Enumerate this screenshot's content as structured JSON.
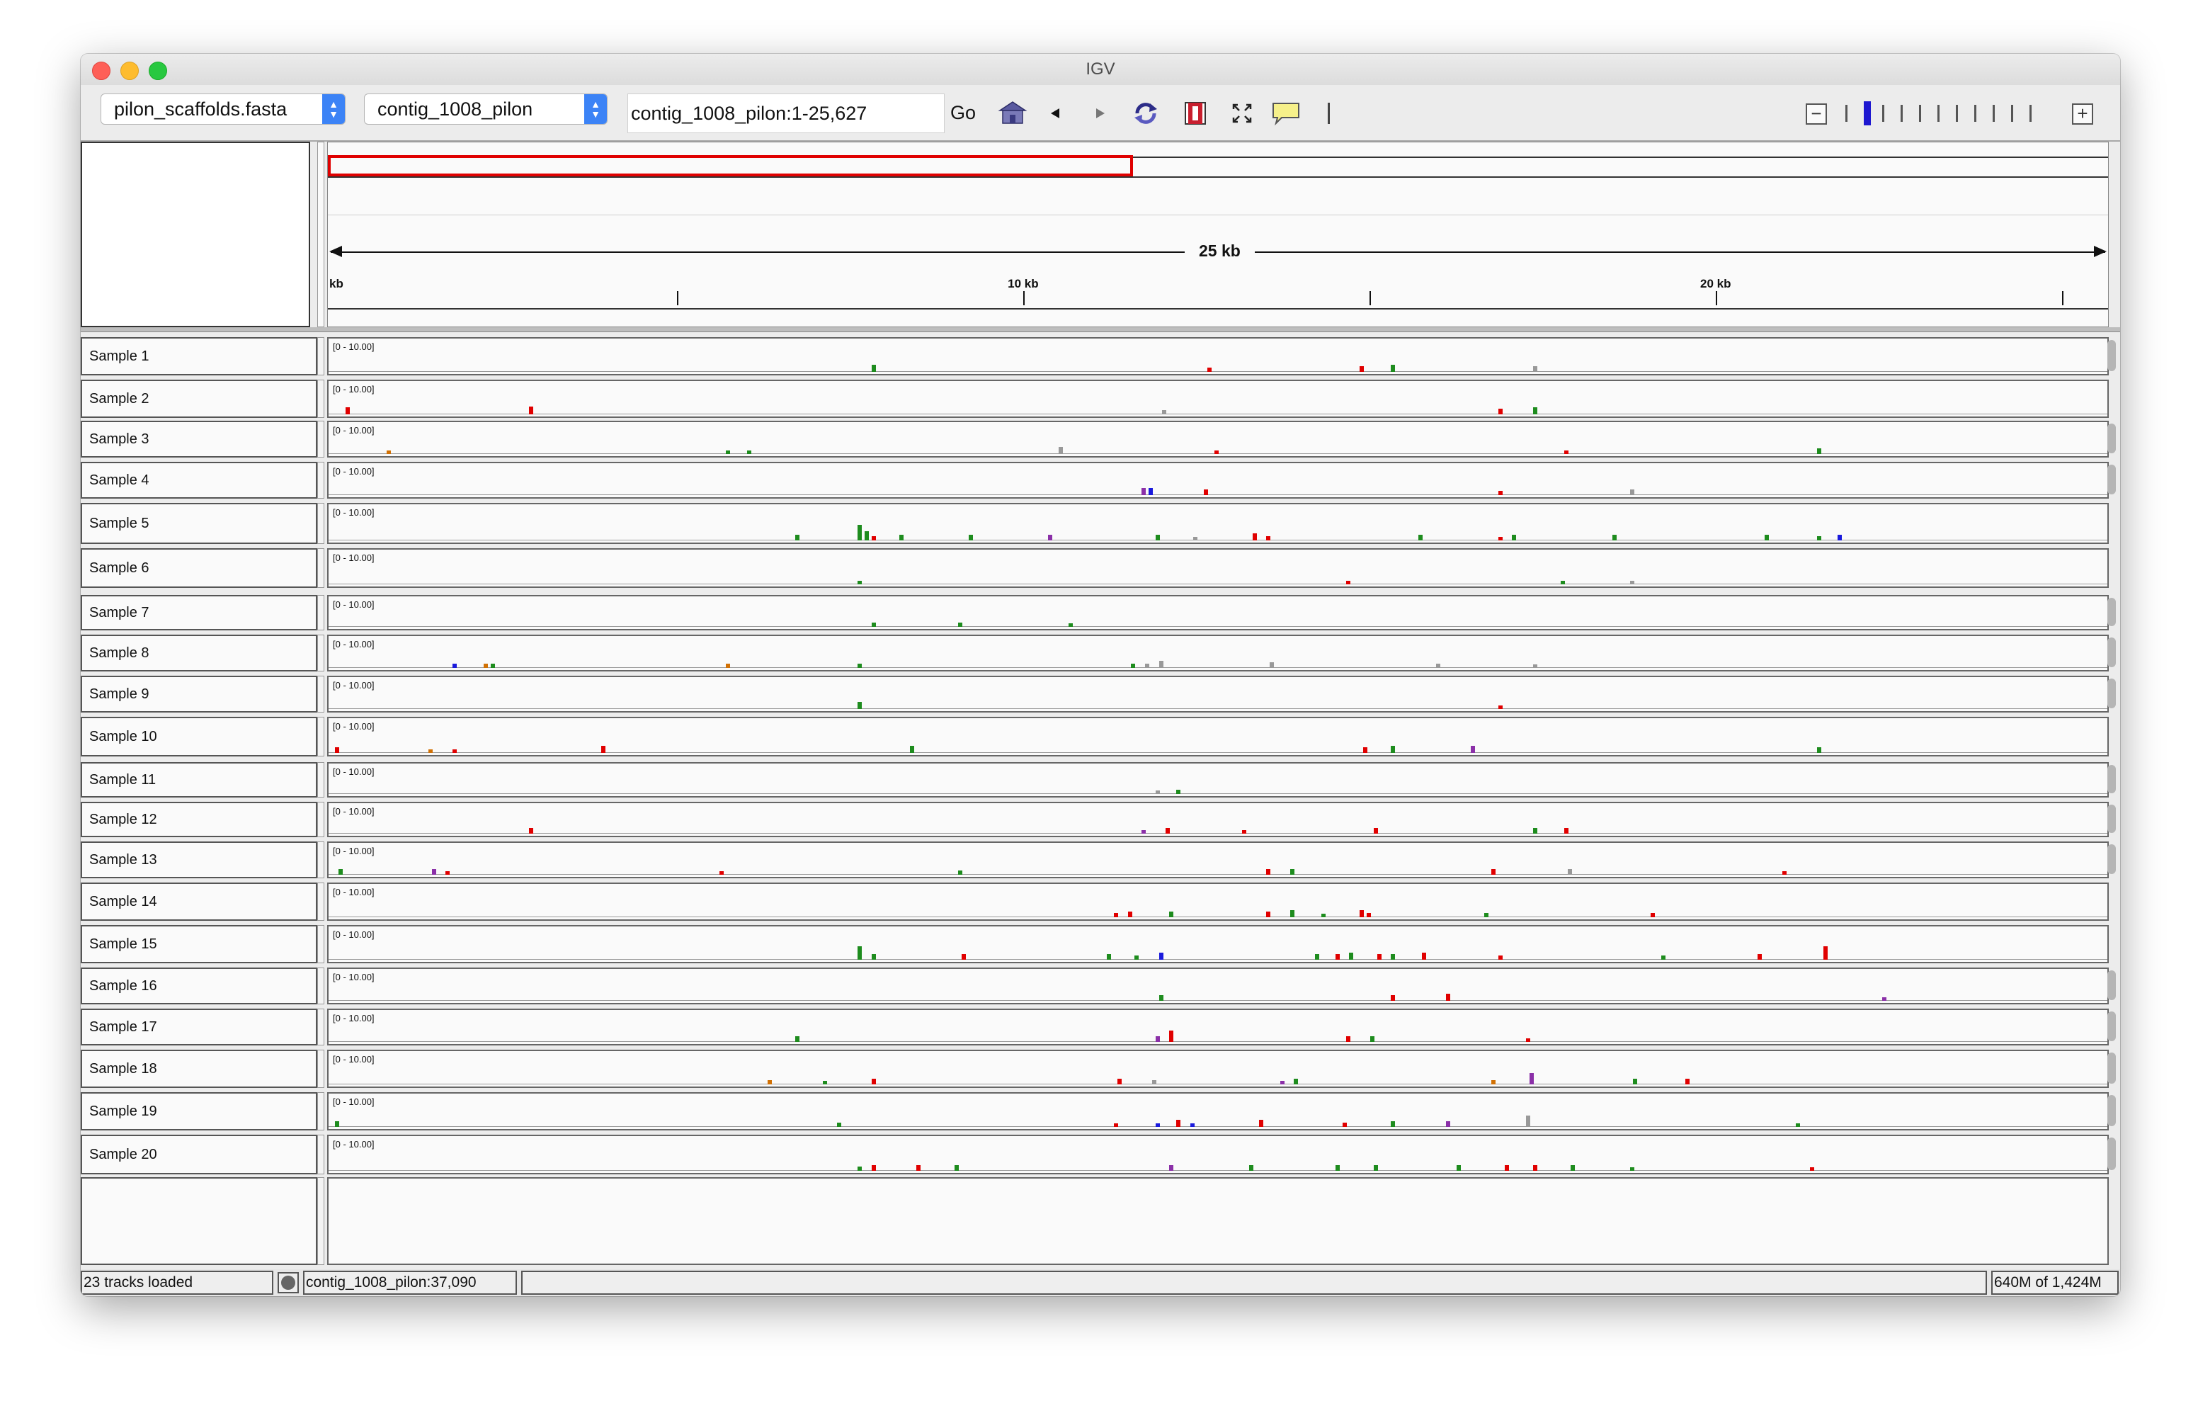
{
  "window": {
    "title": "IGV"
  },
  "toolbar": {
    "genome": "pilon_scaffolds.fasta",
    "chromosome": "contig_1008_pilon",
    "locus": "contig_1008_pilon:1-25,627",
    "go_label": "Go",
    "icons": [
      "home-icon",
      "back-icon",
      "forward-icon",
      "refresh-icon",
      "roi-icon",
      "fit-icon",
      "popup-info-icon",
      "separator"
    ],
    "zoom_ticks": 11,
    "zoom_level_index": 1
  },
  "ruler": {
    "span_label": "25 kb",
    "tick_labels": [
      {
        "text": "kb",
        "kb": 0
      },
      {
        "text": "10 kb",
        "kb": 10
      },
      {
        "text": "20 kb",
        "kb": 20
      }
    ],
    "unlabeled_ticks_kb": [
      5,
      15,
      25
    ],
    "region_end_kb": 25.627,
    "view_fraction": 0.452
  },
  "colors": {
    "A": "#1e8c1e",
    "C": "#1a1adc",
    "G": "#d17105",
    "T": "#e00000",
    "mix": "#999999",
    "purple": "#8b30a8",
    "roi": "#e00000"
  },
  "tracks": [
    {
      "name": "Sample 1",
      "range": "[0 - 10.00]",
      "scrollbar": true,
      "marks": [
        [
          7.8,
          "A",
          6
        ],
        [
          12.65,
          "T",
          4
        ],
        [
          14.85,
          "T",
          5
        ],
        [
          15.3,
          "A",
          6
        ],
        [
          17.35,
          "mix",
          5
        ]
      ]
    },
    {
      "name": "Sample 2",
      "range": "[0 - 10.00]",
      "scrollbar": false,
      "marks": [
        [
          0.2,
          "T",
          6
        ],
        [
          2.85,
          "T",
          7
        ],
        [
          12.0,
          "mix",
          4
        ],
        [
          16.85,
          "T",
          5
        ],
        [
          17.35,
          "A",
          6
        ]
      ]
    },
    {
      "name": "Sample 3",
      "range": "[0 - 10.00]",
      "scrollbar": true,
      "marks": [
        [
          0.8,
          "G",
          3
        ],
        [
          5.7,
          "A",
          3
        ],
        [
          6.0,
          "A",
          3
        ],
        [
          10.5,
          "mix",
          6
        ],
        [
          12.75,
          "T",
          3
        ],
        [
          17.8,
          "T",
          3
        ],
        [
          21.45,
          "A",
          5
        ]
      ]
    },
    {
      "name": "Sample 4",
      "range": "[0 - 10.00]",
      "scrollbar": true,
      "marks": [
        [
          11.7,
          "purple",
          6
        ],
        [
          11.8,
          "C",
          6
        ],
        [
          12.6,
          "T",
          5
        ],
        [
          16.85,
          "T",
          4
        ],
        [
          18.75,
          "mix",
          5
        ]
      ]
    },
    {
      "name": "Sample 5",
      "range": "[0 - 10.00]",
      "scrollbar": false,
      "marks": [
        [
          6.7,
          "A",
          5
        ],
        [
          7.6,
          "A",
          14
        ],
        [
          7.7,
          "A",
          8
        ],
        [
          7.8,
          "T",
          4
        ],
        [
          8.2,
          "A",
          5
        ],
        [
          9.2,
          "A",
          5
        ],
        [
          10.35,
          "purple",
          5
        ],
        [
          11.9,
          "A",
          5
        ],
        [
          12.45,
          "mix",
          3
        ],
        [
          13.3,
          "T",
          6
        ],
        [
          13.5,
          "T",
          4
        ],
        [
          15.7,
          "A",
          5
        ],
        [
          16.85,
          "T",
          3
        ],
        [
          17.05,
          "A",
          5
        ],
        [
          18.5,
          "A",
          5
        ],
        [
          20.7,
          "A",
          5
        ],
        [
          21.45,
          "A",
          4
        ],
        [
          21.75,
          "C",
          5
        ]
      ]
    },
    {
      "name": "Sample 6",
      "range": "[0 - 10.00]",
      "scrollbar": false,
      "marks": [
        [
          7.6,
          "A",
          3
        ],
        [
          14.65,
          "T",
          3
        ],
        [
          17.75,
          "A",
          3
        ],
        [
          18.75,
          "mix",
          3
        ]
      ]
    },
    {
      "name": "Sample 7",
      "range": "[0 - 10.00]",
      "scrollbar": true,
      "marks": [
        [
          7.8,
          "A",
          4
        ],
        [
          9.05,
          "A",
          4
        ],
        [
          10.65,
          "A",
          3
        ]
      ]
    },
    {
      "name": "Sample 8",
      "range": "[0 - 10.00]",
      "scrollbar": true,
      "marks": [
        [
          1.75,
          "C",
          4
        ],
        [
          2.2,
          "G",
          4
        ],
        [
          2.3,
          "A",
          4
        ],
        [
          5.7,
          "G",
          4
        ],
        [
          7.6,
          "A",
          4
        ],
        [
          11.55,
          "A",
          4
        ],
        [
          11.75,
          "mix",
          4
        ],
        [
          11.95,
          "mix",
          6
        ],
        [
          13.55,
          "mix",
          5
        ],
        [
          15.95,
          "mix",
          4
        ],
        [
          17.35,
          "mix",
          3
        ]
      ]
    },
    {
      "name": "Sample 9",
      "range": "[0 - 10.00]",
      "scrollbar": true,
      "marks": [
        [
          7.6,
          "A",
          6
        ],
        [
          16.85,
          "T",
          3
        ]
      ]
    },
    {
      "name": "Sample 10",
      "range": "[0 - 10.00]",
      "scrollbar": false,
      "marks": [
        [
          0.05,
          "T",
          5
        ],
        [
          1.4,
          "G",
          3
        ],
        [
          1.75,
          "T",
          3
        ],
        [
          3.9,
          "T",
          6
        ],
        [
          8.35,
          "A",
          6
        ],
        [
          14.9,
          "T",
          5
        ],
        [
          15.3,
          "A",
          6
        ],
        [
          16.45,
          "purple",
          6
        ],
        [
          21.45,
          "A",
          5
        ]
      ]
    },
    {
      "name": "Sample 11",
      "range": "[0 - 10.00]",
      "scrollbar": true,
      "marks": [
        [
          11.9,
          "mix",
          3
        ],
        [
          12.2,
          "A",
          4
        ]
      ]
    },
    {
      "name": "Sample 12",
      "range": "[0 - 10.00]",
      "scrollbar": true,
      "marks": [
        [
          2.85,
          "T",
          5
        ],
        [
          11.7,
          "purple",
          3
        ],
        [
          12.05,
          "T",
          5
        ],
        [
          13.15,
          "T",
          3
        ],
        [
          15.05,
          "T",
          5
        ],
        [
          17.35,
          "A",
          5
        ],
        [
          17.8,
          "T",
          5
        ]
      ]
    },
    {
      "name": "Sample 13",
      "range": "[0 - 10.00]",
      "scrollbar": true,
      "marks": [
        [
          0.1,
          "A",
          5
        ],
        [
          1.45,
          "purple",
          5
        ],
        [
          1.65,
          "T",
          3
        ],
        [
          5.6,
          "T",
          3
        ],
        [
          9.05,
          "A",
          4
        ],
        [
          13.5,
          "T",
          5
        ],
        [
          13.85,
          "A",
          5
        ],
        [
          16.75,
          "T",
          5
        ],
        [
          17.85,
          "mix",
          5
        ],
        [
          20.95,
          "T",
          3
        ]
      ]
    },
    {
      "name": "Sample 14",
      "range": "[0 - 10.00]",
      "scrollbar": false,
      "marks": [
        [
          11.3,
          "T",
          4
        ],
        [
          11.5,
          "T",
          5
        ],
        [
          12.1,
          "A",
          5
        ],
        [
          13.5,
          "T",
          5
        ],
        [
          13.85,
          "A",
          6
        ],
        [
          14.3,
          "A",
          3
        ],
        [
          14.85,
          "T",
          6
        ],
        [
          14.95,
          "T",
          4
        ],
        [
          16.65,
          "A",
          4
        ],
        [
          19.05,
          "T",
          4
        ]
      ]
    },
    {
      "name": "Sample 15",
      "range": "[0 - 10.00]",
      "scrollbar": false,
      "marks": [
        [
          7.6,
          "A",
          12
        ],
        [
          7.8,
          "A",
          5
        ],
        [
          9.1,
          "T",
          5
        ],
        [
          11.2,
          "A",
          5
        ],
        [
          11.6,
          "A",
          4
        ],
        [
          11.95,
          "C",
          6
        ],
        [
          14.2,
          "A",
          5
        ],
        [
          14.5,
          "T",
          5
        ],
        [
          14.7,
          "A",
          6
        ],
        [
          15.1,
          "T",
          5
        ],
        [
          15.3,
          "A",
          5
        ],
        [
          15.75,
          "T",
          6
        ],
        [
          16.85,
          "T",
          4
        ],
        [
          19.2,
          "A",
          4
        ],
        [
          20.6,
          "T",
          5
        ],
        [
          21.55,
          "T",
          12
        ]
      ]
    },
    {
      "name": "Sample 16",
      "range": "[0 - 10.00]",
      "scrollbar": true,
      "marks": [
        [
          11.95,
          "A",
          5
        ],
        [
          15.3,
          "T",
          5
        ],
        [
          16.1,
          "T",
          6
        ],
        [
          22.4,
          "purple",
          3
        ]
      ]
    },
    {
      "name": "Sample 17",
      "range": "[0 - 10.00]",
      "scrollbar": true,
      "marks": [
        [
          6.7,
          "A",
          5
        ],
        [
          11.9,
          "purple",
          5
        ],
        [
          12.1,
          "T",
          10
        ],
        [
          14.65,
          "T",
          5
        ],
        [
          15.0,
          "A",
          5
        ],
        [
          17.25,
          "T",
          3
        ]
      ]
    },
    {
      "name": "Sample 18",
      "range": "[0 - 10.00]",
      "scrollbar": true,
      "marks": [
        [
          6.3,
          "G",
          4
        ],
        [
          7.1,
          "A",
          3
        ],
        [
          7.8,
          "T",
          5
        ],
        [
          11.35,
          "T",
          5
        ],
        [
          11.85,
          "mix",
          4
        ],
        [
          13.7,
          "purple",
          3
        ],
        [
          13.9,
          "A",
          5
        ],
        [
          16.75,
          "G",
          4
        ],
        [
          17.3,
          "purple",
          10
        ],
        [
          18.8,
          "A",
          5
        ],
        [
          19.55,
          "T",
          5
        ]
      ]
    },
    {
      "name": "Sample 19",
      "range": "[0 - 10.00]",
      "scrollbar": true,
      "marks": [
        [
          0.05,
          "A",
          5
        ],
        [
          7.3,
          "A",
          4
        ],
        [
          11.3,
          "T",
          3
        ],
        [
          11.9,
          "C",
          3
        ],
        [
          12.2,
          "T",
          6
        ],
        [
          12.4,
          "C",
          3
        ],
        [
          13.4,
          "T",
          6
        ],
        [
          14.6,
          "T",
          4
        ],
        [
          15.3,
          "A",
          5
        ],
        [
          16.1,
          "purple",
          5
        ],
        [
          17.25,
          "mix",
          10
        ],
        [
          21.15,
          "A",
          3
        ]
      ]
    },
    {
      "name": "Sample 20",
      "range": "[0 - 10.00]",
      "scrollbar": true,
      "marks": [
        [
          7.6,
          "A",
          4
        ],
        [
          7.8,
          "T",
          5
        ],
        [
          8.45,
          "T",
          5
        ],
        [
          9.0,
          "A",
          5
        ],
        [
          12.1,
          "purple",
          5
        ],
        [
          13.25,
          "A",
          5
        ],
        [
          14.5,
          "A",
          5
        ],
        [
          15.05,
          "A",
          5
        ],
        [
          16.25,
          "A",
          5
        ],
        [
          16.95,
          "T",
          5
        ],
        [
          17.35,
          "T",
          5
        ],
        [
          17.9,
          "A",
          5
        ],
        [
          18.75,
          "A",
          3
        ],
        [
          21.35,
          "T",
          3
        ]
      ]
    }
  ],
  "status": {
    "tracks_loaded": "23 tracks loaded",
    "position": "contig_1008_pilon:37,090",
    "message": "",
    "memory": "640M of 1,424M"
  }
}
